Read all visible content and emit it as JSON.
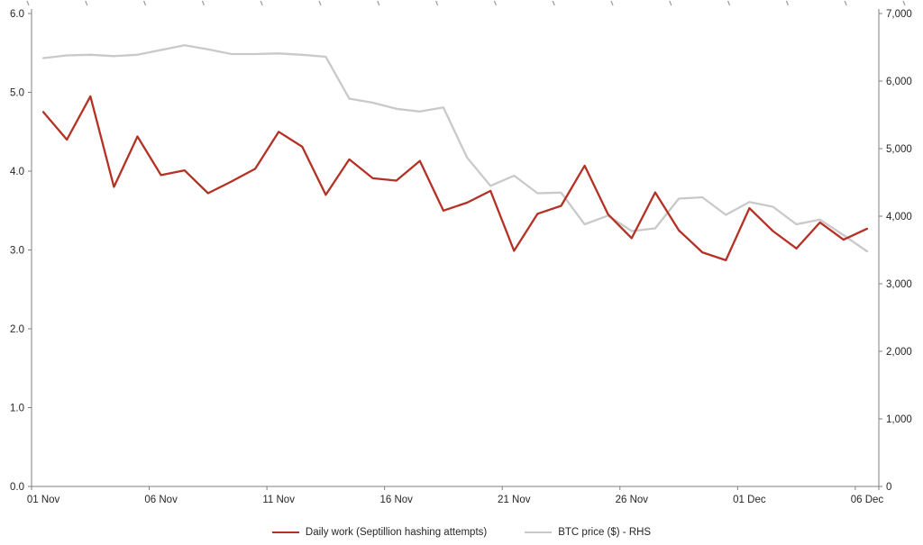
{
  "chart_data": {
    "type": "line",
    "title": "",
    "x": [
      "01 Nov",
      "02 Nov",
      "03 Nov",
      "04 Nov",
      "05 Nov",
      "06 Nov",
      "07 Nov",
      "08 Nov",
      "09 Nov",
      "10 Nov",
      "11 Nov",
      "12 Nov",
      "13 Nov",
      "14 Nov",
      "15 Nov",
      "16 Nov",
      "17 Nov",
      "18 Nov",
      "19 Nov",
      "20 Nov",
      "21 Nov",
      "22 Nov",
      "23 Nov",
      "24 Nov",
      "25 Nov",
      "26 Nov",
      "27 Nov",
      "28 Nov",
      "29 Nov",
      "30 Nov",
      "01 Dec",
      "02 Dec",
      "03 Dec",
      "04 Dec",
      "05 Dec",
      "06 Dec"
    ],
    "x_tick_labels": [
      "01 Nov",
      "06 Nov",
      "11 Nov",
      "16 Nov",
      "21 Nov",
      "26 Nov",
      "01 Dec",
      "06 Dec"
    ],
    "x_tick_interval": 5,
    "left_axis": {
      "min": 0,
      "max": 6,
      "tick_labels": [
        "0.0",
        "1.0",
        "2.0",
        "3.0",
        "4.0",
        "5.0",
        "6.0"
      ]
    },
    "right_axis": {
      "min": 0,
      "max": 7000,
      "tick_labels": [
        "0",
        "1,000",
        "2,000",
        "3,000",
        "4,000",
        "5,000",
        "6,000",
        "7,000"
      ]
    },
    "grid": false,
    "legend_position": "bottom",
    "series": [
      {
        "name": "Daily work (Septillion hashing attempts)",
        "axis": "left",
        "color": "#b43125",
        "values": [
          4.75,
          4.4,
          4.95,
          3.8,
          4.44,
          3.95,
          4.01,
          3.72,
          3.87,
          4.03,
          4.5,
          4.31,
          3.7,
          4.15,
          3.91,
          3.88,
          4.13,
          3.5,
          3.6,
          3.75,
          2.99,
          3.46,
          3.56,
          4.07,
          3.45,
          3.15,
          3.73,
          3.25,
          2.97,
          2.87,
          3.53,
          3.24,
          3.02,
          3.35,
          3.13,
          3.27
        ]
      },
      {
        "name": "BTC price ($) - RHS",
        "axis": "right",
        "color": "#c9c9c9",
        "values": [
          6340,
          6380,
          6390,
          6370,
          6390,
          6460,
          6530,
          6470,
          6400,
          6400,
          6410,
          6390,
          6360,
          5740,
          5680,
          5590,
          5550,
          5610,
          4870,
          4450,
          4600,
          4340,
          4350,
          3880,
          4010,
          3780,
          3820,
          4260,
          4280,
          4020,
          4210,
          4140,
          3880,
          3950,
          3720,
          3480
        ]
      }
    ]
  }
}
